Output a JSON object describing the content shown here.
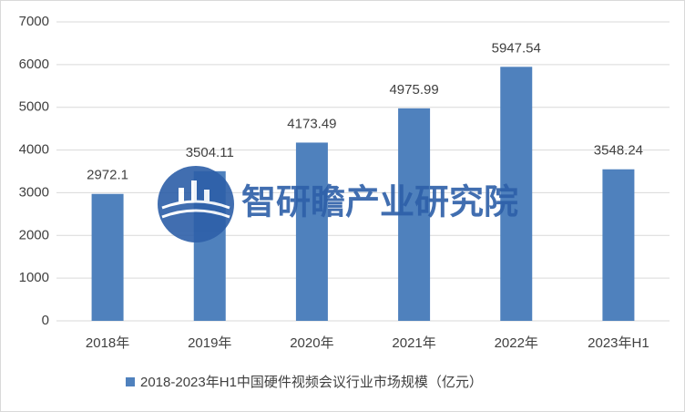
{
  "chart_data": {
    "type": "bar",
    "categories": [
      "2018年",
      "2019年",
      "2020年",
      "2021年",
      "2022年",
      "2023年H1"
    ],
    "series": [
      {
        "name": "2018-2023年H1中国硬件视频会议行业市场规模（亿元）",
        "color": "#4f81bd",
        "values": [
          2972.1,
          3504.11,
          4173.49,
          4975.99,
          5947.54,
          3548.24
        ]
      }
    ],
    "ylim": [
      0,
      7000
    ],
    "yticks": [
      0,
      1000,
      2000,
      3000,
      4000,
      5000,
      6000,
      7000
    ],
    "grid": true,
    "watermark": "智研瞻产业研究院"
  }
}
